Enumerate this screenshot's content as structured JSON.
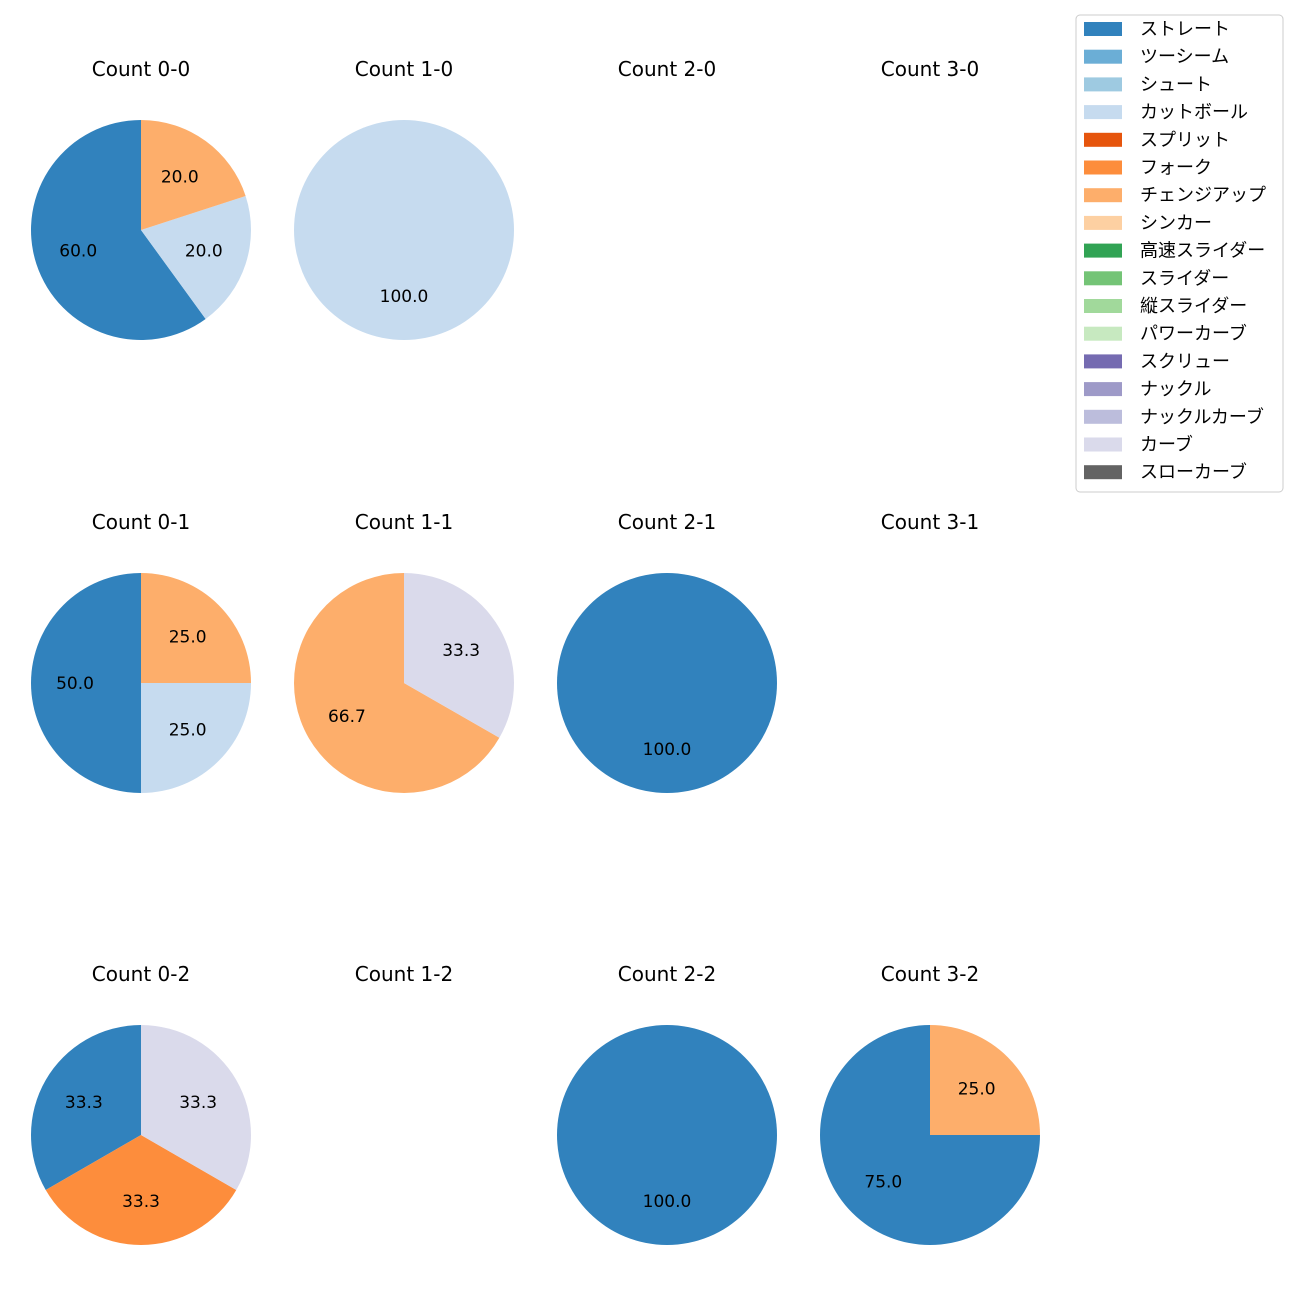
{
  "chart_data": {
    "type": "pie",
    "legend_position": "top-right",
    "legend": [
      {
        "name": "ストレート",
        "color": "#3182bd"
      },
      {
        "name": "ツーシーム",
        "color": "#6baed6"
      },
      {
        "name": "シュート",
        "color": "#9ecae1"
      },
      {
        "name": "カットボール",
        "color": "#c6dbef"
      },
      {
        "name": "スプリット",
        "color": "#e6550d"
      },
      {
        "name": "フォーク",
        "color": "#fd8d3c"
      },
      {
        "name": "チェンジアップ",
        "color": "#fdae6b"
      },
      {
        "name": "シンカー",
        "color": "#fdd0a2"
      },
      {
        "name": "高速スライダー",
        "color": "#31a354"
      },
      {
        "name": "スライダー",
        "color": "#74c476"
      },
      {
        "name": "縦スライダー",
        "color": "#a1d99b"
      },
      {
        "name": "パワーカーブ",
        "color": "#c7e9c0"
      },
      {
        "name": "スクリュー",
        "color": "#756bb1"
      },
      {
        "name": "ナックル",
        "color": "#9e9ac8"
      },
      {
        "name": "ナックルカーブ",
        "color": "#bcbddc"
      },
      {
        "name": "カーブ",
        "color": "#dadaeb"
      },
      {
        "name": "スローカーブ",
        "color": "#636363"
      }
    ],
    "panels": [
      {
        "title": "Count 0-0",
        "slices": [
          {
            "pitch": "ストレート",
            "value": 60.0,
            "label": "60.0"
          },
          {
            "pitch": "カットボール",
            "value": 20.0,
            "label": "20.0"
          },
          {
            "pitch": "チェンジアップ",
            "value": 20.0,
            "label": "20.0"
          }
        ]
      },
      {
        "title": "Count 1-0",
        "slices": [
          {
            "pitch": "カットボール",
            "value": 100.0,
            "label": "100.0"
          }
        ]
      },
      {
        "title": "Count 2-0",
        "slices": []
      },
      {
        "title": "Count 3-0",
        "slices": []
      },
      {
        "title": "Count 0-1",
        "slices": [
          {
            "pitch": "ストレート",
            "value": 50.0,
            "label": "50.0"
          },
          {
            "pitch": "カットボール",
            "value": 25.0,
            "label": "25.0"
          },
          {
            "pitch": "チェンジアップ",
            "value": 25.0,
            "label": "25.0"
          }
        ]
      },
      {
        "title": "Count 1-1",
        "slices": [
          {
            "pitch": "チェンジアップ",
            "value": 66.7,
            "label": "66.7"
          },
          {
            "pitch": "カーブ",
            "value": 33.3,
            "label": "33.3"
          }
        ]
      },
      {
        "title": "Count 2-1",
        "slices": [
          {
            "pitch": "ストレート",
            "value": 100.0,
            "label": "100.0"
          }
        ]
      },
      {
        "title": "Count 3-1",
        "slices": []
      },
      {
        "title": "Count 0-2",
        "slices": [
          {
            "pitch": "ストレート",
            "value": 33.3,
            "label": "33.3"
          },
          {
            "pitch": "フォーク",
            "value": 33.3,
            "label": "33.3"
          },
          {
            "pitch": "カーブ",
            "value": 33.3,
            "label": "33.3"
          }
        ]
      },
      {
        "title": "Count 1-2",
        "slices": []
      },
      {
        "title": "Count 2-2",
        "slices": [
          {
            "pitch": "ストレート",
            "value": 100.0,
            "label": "100.0"
          }
        ]
      },
      {
        "title": "Count 3-2",
        "slices": [
          {
            "pitch": "ストレート",
            "value": 75.0,
            "label": "75.0"
          },
          {
            "pitch": "チェンジアップ",
            "value": 25.0,
            "label": "25.0"
          }
        ]
      }
    ]
  }
}
